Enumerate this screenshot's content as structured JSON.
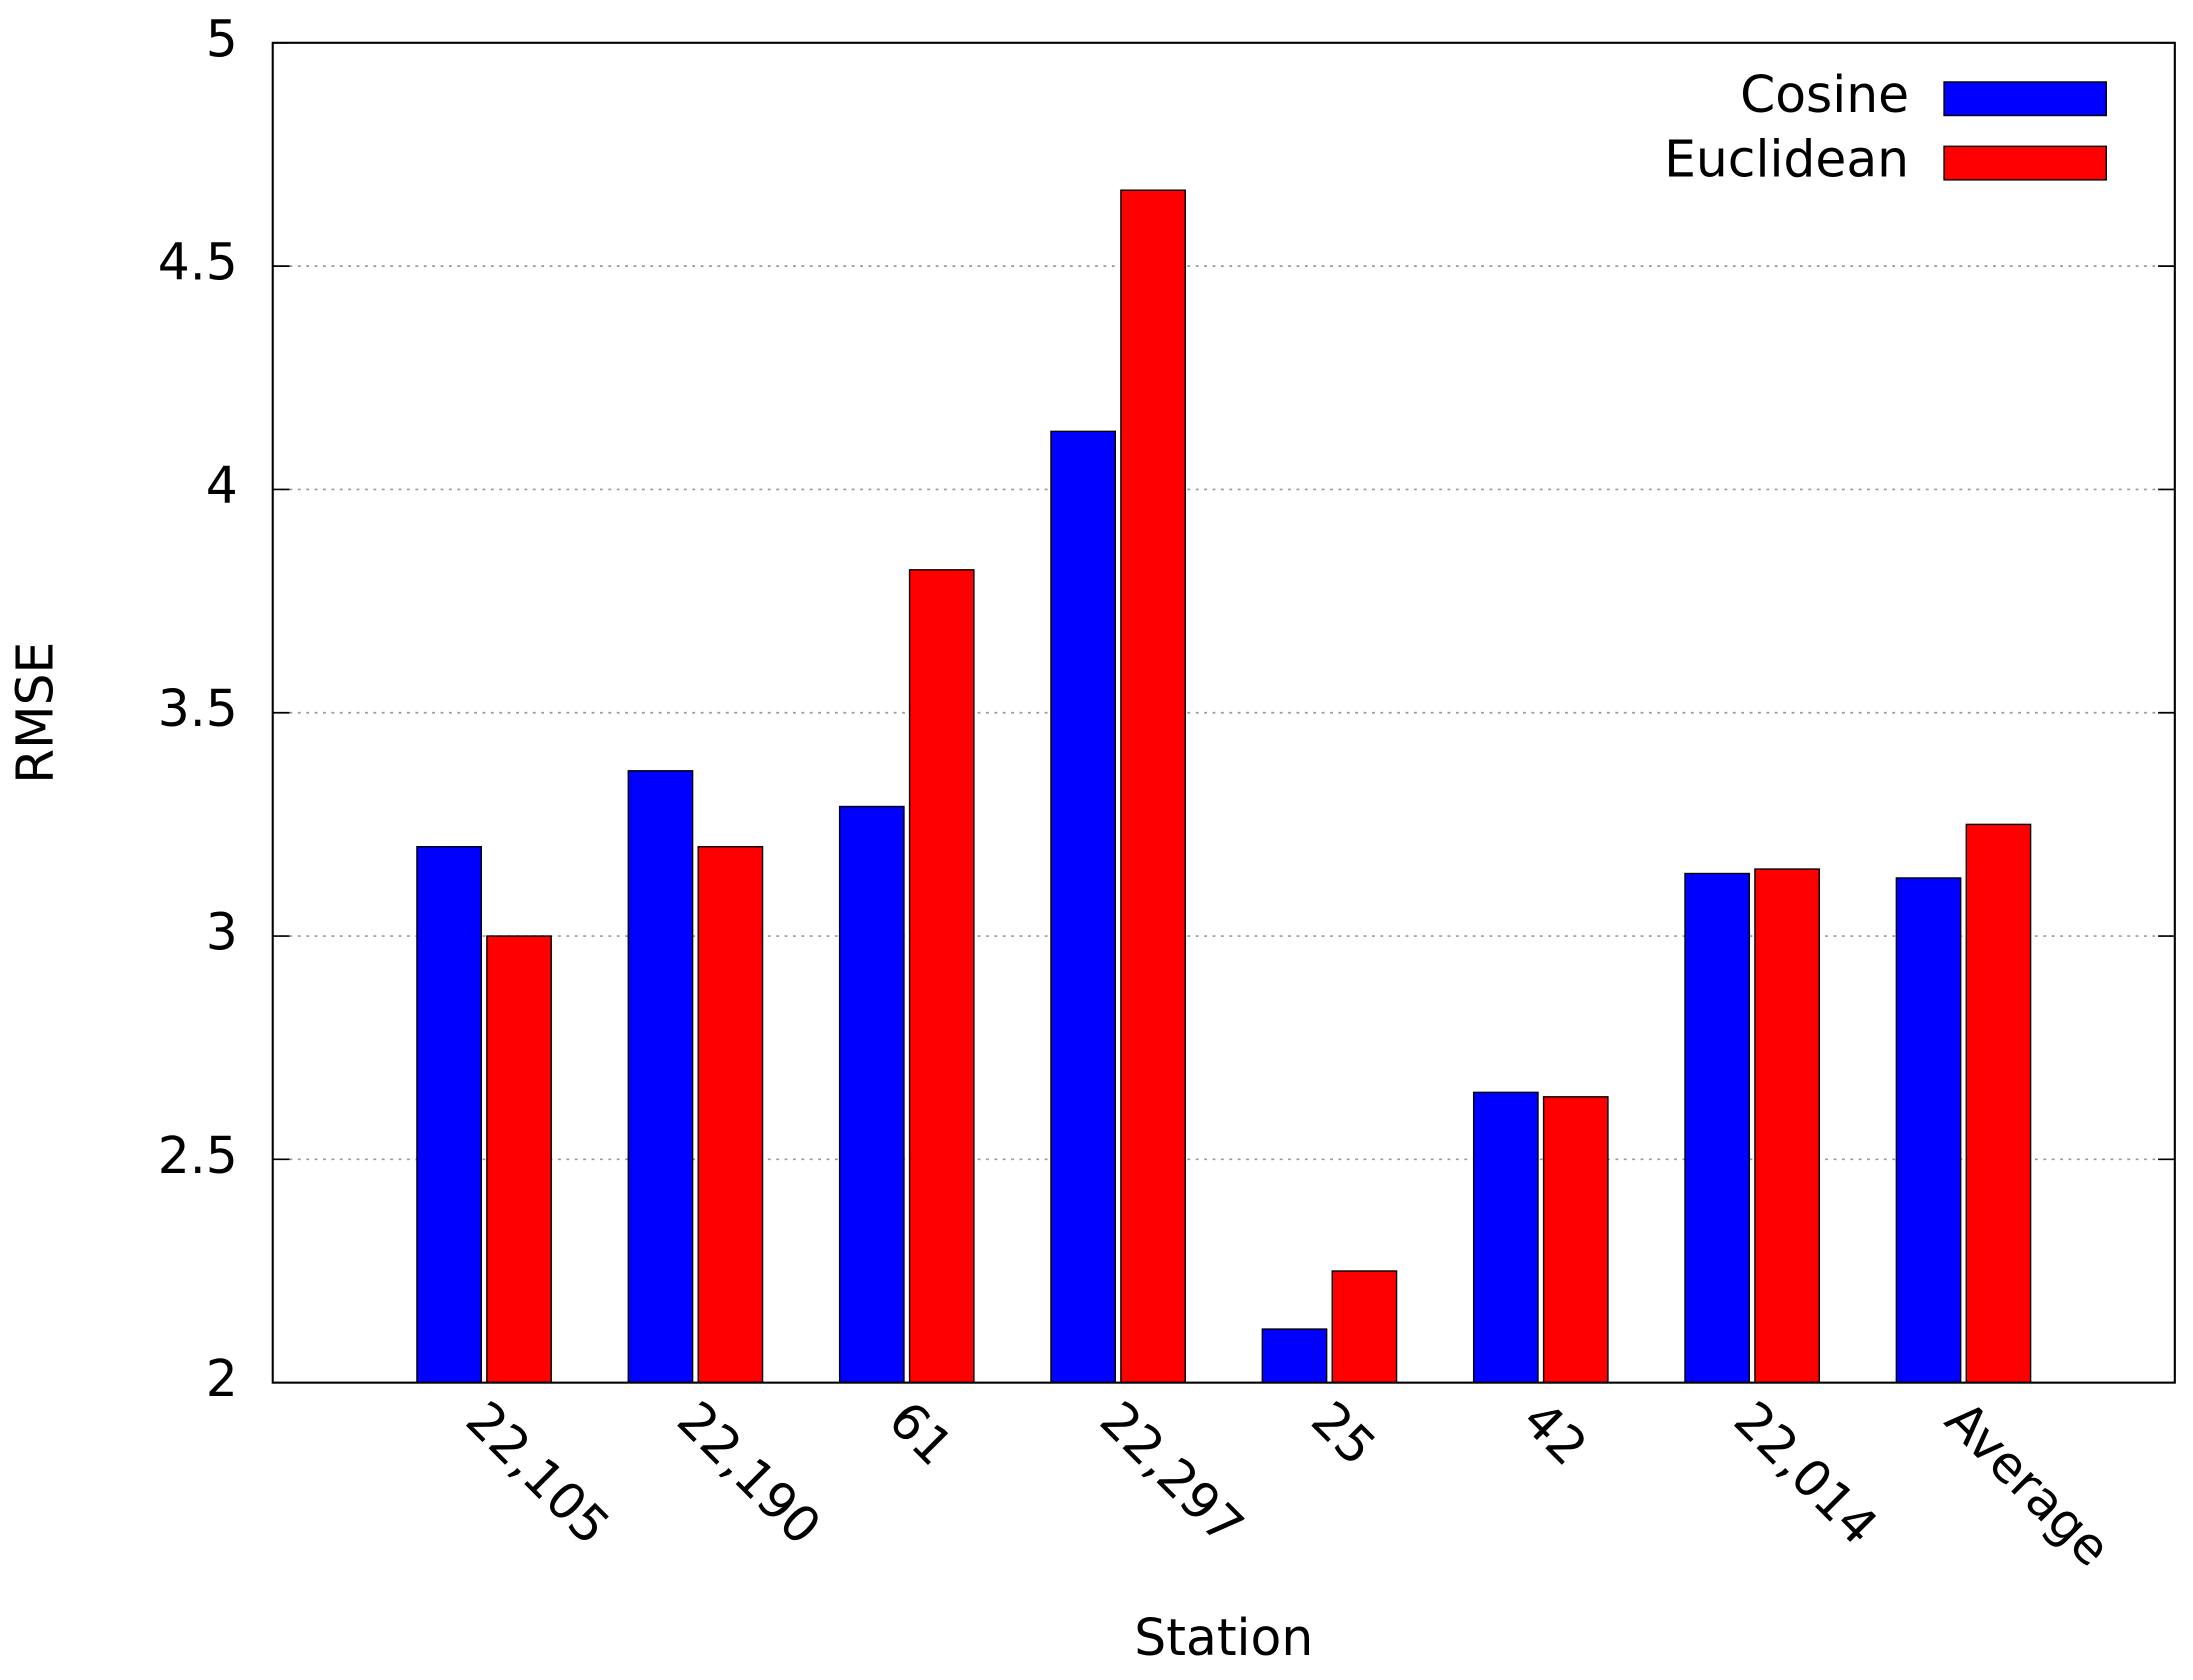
{
  "chart_data": {
    "type": "bar",
    "x_label": "Station",
    "y_label": "RMSE",
    "categories": [
      "22,105",
      "22,190",
      "61",
      "22,297",
      "25",
      "42",
      "22,014",
      "Average"
    ],
    "series": [
      {
        "name": "Cosine",
        "color": "#0000ff",
        "values": [
          3.2,
          3.37,
          3.29,
          4.13,
          2.12,
          2.65,
          3.14,
          3.13
        ]
      },
      {
        "name": "Euclidean",
        "color": "#ff0000",
        "values": [
          3.0,
          3.2,
          3.82,
          4.67,
          2.25,
          2.64,
          3.15,
          3.25
        ]
      }
    ],
    "ylim": [
      2,
      5
    ],
    "yticks": [
      2,
      2.5,
      3,
      3.5,
      4,
      4.5,
      5
    ],
    "grid": true,
    "legend_position": "top-right"
  }
}
